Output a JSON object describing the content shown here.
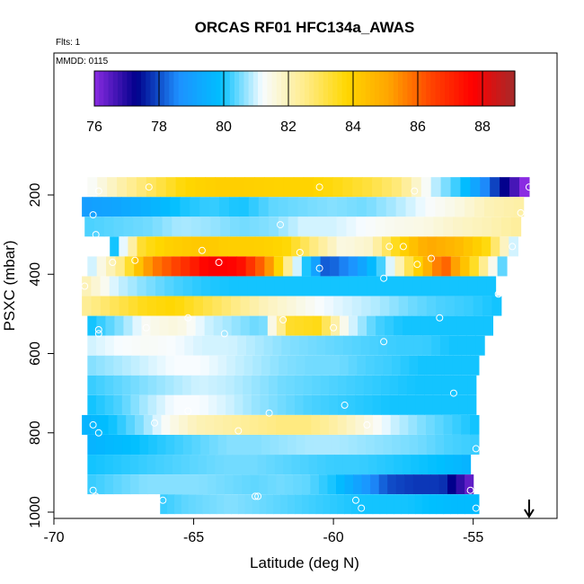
{
  "chart_data": {
    "type": "heatmap",
    "title": "ORCAS RF01 HFC134a_AWAS",
    "subtitle_flights": "Flts: 1",
    "subtitle_mmdd": "MMDD: 0115",
    "xlabel": "Latitude (deg N)",
    "ylabel": "PSXC (mbar)",
    "xlim": [
      -70,
      -52
    ],
    "ylim": [
      1010,
      100
    ],
    "y_inverted": true,
    "x_ticks": [
      -70,
      -65,
      -60,
      -55
    ],
    "x_tick_labels": [
      "-70",
      "-65",
      "-60",
      "-55"
    ],
    "y_ticks": [
      200,
      400,
      600,
      800,
      1000
    ],
    "y_tick_labels": [
      "200",
      "400",
      "600",
      "800",
      "1000"
    ],
    "colorbar": {
      "min": 76,
      "max": 89,
      "ticks": [
        76,
        78,
        80,
        82,
        84,
        86,
        88
      ],
      "tick_labels": [
        "76",
        "78",
        "80",
        "82",
        "84",
        "86",
        "88"
      ],
      "colors": [
        "#8a2be2",
        "#00008b",
        "#1e90ff",
        "#00bfff",
        "#f8fcff",
        "#ffec8b",
        "#ffd700",
        "#ffa500",
        "#ff4500",
        "#ff0000",
        "#a52a2a"
      ]
    },
    "bands": [
      {
        "p": 180,
        "lat_start": -68.8,
        "lat_end": -53.0,
        "values": [
          81.3,
          82.2,
          83.0,
          83.8,
          84.0,
          84.0,
          83.9,
          83.9,
          83.6,
          83.2,
          82.6,
          81.0,
          80.0,
          78.0,
          76.0
        ]
      },
      {
        "p": 230,
        "lat_start": -69.0,
        "lat_end": -53.2,
        "values": [
          79.0,
          79.2,
          79.5,
          80.0,
          80.2,
          80.0,
          80.4,
          80.5,
          80.6,
          80.5,
          80.8,
          81.2,
          81.5,
          82.0,
          82.2
        ]
      },
      {
        "p": 280,
        "lat_start": -68.9,
        "lat_end": -53.3,
        "values": [
          80.3,
          80.4,
          80.5,
          80.8,
          80.7,
          80.5,
          80.6,
          81.0,
          81.0,
          81.2,
          81.4,
          81.5,
          81.8,
          82.0,
          82.3
        ]
      },
      {
        "p": 330,
        "lat_start": -68.0,
        "lat_end": -53.4,
        "values": [
          80.0,
          83.5,
          84.0,
          84.2,
          84.0,
          84.0,
          83.8,
          82.6,
          81.5,
          81.8,
          83.8,
          85.0,
          84.6,
          83.8,
          81.0
        ]
      },
      {
        "p": 380,
        "lat_start": -68.8,
        "lat_end": -53.8,
        "values": [
          81.0,
          82.6,
          85.5,
          86.6,
          87.8,
          87.6,
          85.5,
          81.0,
          78.0,
          78.8,
          80.5,
          83.6,
          86.2,
          83.6,
          80.4
        ]
      },
      {
        "p": 430,
        "lat_start": -69.0,
        "lat_end": -54.2,
        "values": [
          82.0,
          81.0,
          80.6,
          80.3,
          80.1,
          80.0,
          80.0,
          80.0,
          80.0,
          80.0,
          80.0,
          80.0,
          80.0,
          80.0,
          80.0
        ]
      },
      {
        "p": 480,
        "lat_start": -69.0,
        "lat_end": -54.0,
        "values": [
          82.4,
          83.0,
          83.6,
          83.8,
          83.2,
          82.6,
          82.0,
          81.6,
          81.2,
          81.0,
          80.8,
          80.5,
          80.3,
          80.2,
          80.0
        ]
      },
      {
        "p": 530,
        "lat_start": -68.8,
        "lat_end": -54.3,
        "values": [
          80.0,
          80.6,
          81.4,
          81.6,
          81.0,
          80.7,
          80.4,
          83.4,
          83.6,
          81.2,
          80.3,
          80.0,
          80.0,
          80.0,
          80.0
        ]
      },
      {
        "p": 580,
        "lat_start": -68.8,
        "lat_end": -54.6,
        "values": [
          81.0,
          81.2,
          81.3,
          81.2,
          81.0,
          81.0,
          80.8,
          80.6,
          80.5,
          80.4,
          80.3,
          80.2,
          80.2,
          80.0,
          80.0
        ]
      },
      {
        "p": 630,
        "lat_start": -68.8,
        "lat_end": -54.8,
        "values": [
          80.6,
          80.8,
          81.0,
          81.2,
          81.2,
          81.0,
          80.8,
          80.6,
          80.5,
          80.5,
          80.3,
          80.2,
          80.0,
          80.0,
          80.0
        ]
      },
      {
        "p": 680,
        "lat_start": -68.8,
        "lat_end": -54.9,
        "values": [
          80.2,
          80.4,
          80.6,
          80.8,
          81.0,
          80.9,
          80.7,
          80.5,
          80.4,
          80.3,
          80.2,
          80.1,
          80.0,
          80.0,
          80.0
        ]
      },
      {
        "p": 730,
        "lat_start": -68.8,
        "lat_end": -54.9,
        "values": [
          80.0,
          80.3,
          80.8,
          81.2,
          81.2,
          81.0,
          80.7,
          80.5,
          80.3,
          80.2,
          80.1,
          80.0,
          80.0,
          80.0,
          80.0
        ]
      },
      {
        "p": 780,
        "lat_start": -69.0,
        "lat_end": -54.8,
        "values": [
          79.6,
          80.0,
          80.6,
          81.4,
          82.0,
          82.2,
          82.4,
          82.6,
          82.6,
          82.2,
          81.6,
          81.0,
          80.6,
          80.3,
          80.0
        ]
      },
      {
        "p": 830,
        "lat_start": -68.8,
        "lat_end": -54.8,
        "values": [
          79.6,
          79.8,
          80.0,
          80.2,
          80.4,
          80.6,
          80.6,
          80.7,
          80.8,
          80.8,
          80.7,
          80.6,
          80.5,
          80.3,
          80.2
        ]
      },
      {
        "p": 880,
        "lat_start": -68.8,
        "lat_end": -55.1,
        "values": [
          80.0,
          80.1,
          80.2,
          80.3,
          80.4,
          80.5,
          80.5,
          80.4,
          80.3,
          80.2,
          80.2,
          80.1,
          80.0,
          79.9,
          79.6
        ]
      },
      {
        "p": 930,
        "lat_start": -68.8,
        "lat_end": -55.0,
        "values": [
          80.2,
          80.4,
          80.6,
          80.6,
          80.6,
          80.5,
          80.4,
          80.5,
          80.4,
          80.0,
          79.0,
          78.0,
          77.8,
          77.8,
          76.4
        ]
      },
      {
        "p": 980,
        "lat_start": -66.2,
        "lat_end": -54.8,
        "values": [
          80.2,
          80.4,
          80.5,
          80.6,
          80.5,
          80.4,
          80.3,
          80.2,
          80.1,
          80.0,
          80.0,
          80.0,
          79.9,
          79.8,
          79.8
        ]
      }
    ],
    "samples": [
      {
        "lat": -68.4,
        "p": 190
      },
      {
        "lat": -66.6,
        "lat2": 0,
        "p": 180
      },
      {
        "lat": -60.5,
        "p": 180
      },
      {
        "lat": -57.1,
        "p": 190
      },
      {
        "lat": -53.0,
        "p": 180
      },
      {
        "lat": -53.3,
        "p": 245
      },
      {
        "lat": -68.6,
        "p": 250
      },
      {
        "lat": -61.9,
        "p": 275
      },
      {
        "lat": -68.5,
        "p": 300
      },
      {
        "lat": -53.6,
        "p": 330
      },
      {
        "lat": -58.0,
        "p": 330
      },
      {
        "lat": -57.5,
        "p": 330
      },
      {
        "lat": -64.7,
        "p": 340
      },
      {
        "lat": -61.2,
        "p": 345
      },
      {
        "lat": -67.9,
        "p": 370
      },
      {
        "lat": -67.1,
        "p": 365
      },
      {
        "lat": -64.1,
        "p": 370
      },
      {
        "lat": -60.5,
        "p": 385
      },
      {
        "lat": -58.2,
        "p": 410
      },
      {
        "lat": -57.0,
        "p": 375
      },
      {
        "lat": -56.5,
        "p": 360
      },
      {
        "lat": -54.1,
        "p": 450
      },
      {
        "lat": -68.9,
        "p": 430
      },
      {
        "lat": -65.2,
        "p": 510
      },
      {
        "lat": -61.8,
        "p": 515
      },
      {
        "lat": -56.2,
        "p": 510
      },
      {
        "lat": -68.4,
        "p": 540
      },
      {
        "lat": -68.4,
        "p": 550
      },
      {
        "lat": -66.7,
        "p": 535
      },
      {
        "lat": -63.9,
        "p": 550
      },
      {
        "lat": -60.0,
        "p": 535
      },
      {
        "lat": -58.2,
        "p": 570
      },
      {
        "lat": -54.5,
        "p": 620
      },
      {
        "lat": -55.7,
        "p": 700
      },
      {
        "lat": -59.6,
        "p": 730
      },
      {
        "lat": -62.3,
        "p": 750
      },
      {
        "lat": -65.2,
        "p": 745
      },
      {
        "lat": -66.4,
        "p": 775
      },
      {
        "lat": -68.6,
        "p": 780
      },
      {
        "lat": -68.4,
        "p": 800
      },
      {
        "lat": -63.4,
        "p": 795
      },
      {
        "lat": -58.8,
        "p": 780
      },
      {
        "lat": -54.9,
        "p": 840
      },
      {
        "lat": -68.6,
        "p": 945
      },
      {
        "lat": -68.5,
        "p": 960
      },
      {
        "lat": -66.1,
        "p": 970
      },
      {
        "lat": -62.7,
        "p": 960
      },
      {
        "lat": -62.8,
        "p": 960
      },
      {
        "lat": -59.2,
        "p": 970
      },
      {
        "lat": -59.0,
        "p": 990
      },
      {
        "lat": -55.1,
        "p": 945
      },
      {
        "lat": -54.9,
        "p": 990
      }
    ],
    "arrow_marker": {
      "lat": -53.0,
      "direction": "down"
    }
  }
}
